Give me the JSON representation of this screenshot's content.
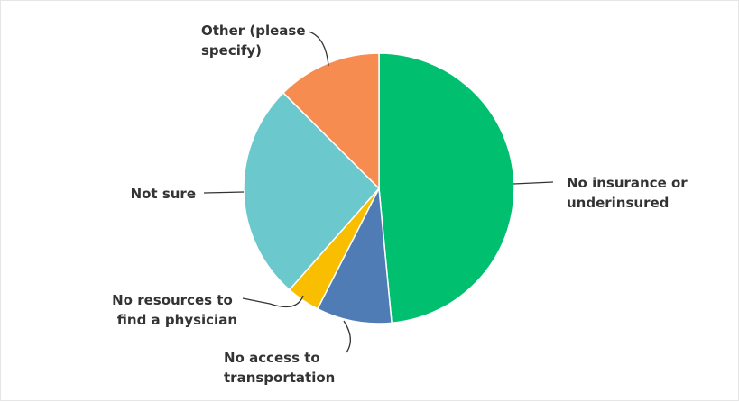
{
  "chart_data": {
    "type": "pie",
    "title": "",
    "slices": [
      {
        "label": "No insurance or underinsured",
        "value": 48.5,
        "color": "#00BF6F"
      },
      {
        "label": "No access to transportation",
        "value": 9.0,
        "color": "#507CB6"
      },
      {
        "label": "No resources to find a physician",
        "value": 4.0,
        "color": "#F9BE00"
      },
      {
        "label": "Not sure",
        "value": 26.0,
        "color": "#6BC8CD"
      },
      {
        "label": "Other (please specify)",
        "value": 12.5,
        "color": "#F78C50"
      }
    ]
  },
  "labels": [
    {
      "lines": [
        "No insurance or",
        "underinsured"
      ]
    },
    {
      "lines": [
        "No access to",
        "transportation"
      ]
    },
    {
      "lines": [
        "No resources to",
        "find a physician"
      ]
    },
    {
      "lines": [
        "Not sure"
      ]
    },
    {
      "lines": [
        "Other (please",
        "specify)"
      ]
    }
  ]
}
